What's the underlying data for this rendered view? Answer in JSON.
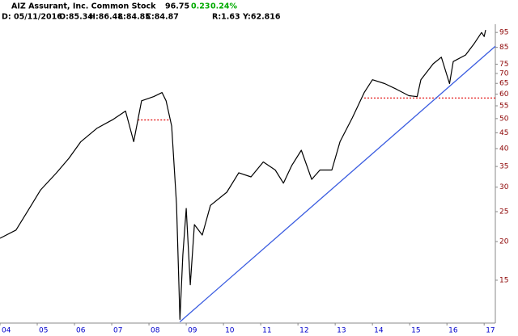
{
  "chart_data": {
    "type": "line",
    "title": "AIZ Assurant, Inc. Common Stock",
    "quote": {
      "last": "96.75",
      "change": "0.23",
      "change_pct": "0.24%"
    },
    "info": [
      "D: 05/11/2016",
      "O:85.34",
      "H:86.48",
      "L:84.85",
      "C:84.87"
    ],
    "readout": [
      "R:1.63",
      "Y:62.816"
    ],
    "log_scale": true,
    "xlim": [
      2004,
      2017.3
    ],
    "ylim": [
      10.9,
      101
    ],
    "xticks": [
      {
        "value": 2004,
        "label": "04"
      },
      {
        "value": 2005,
        "label": "05"
      },
      {
        "value": 2006,
        "label": "06"
      },
      {
        "value": 2007,
        "label": "07"
      },
      {
        "value": 2008,
        "label": "08"
      },
      {
        "value": 2009,
        "label": "09"
      },
      {
        "value": 2010,
        "label": "10"
      },
      {
        "value": 2011,
        "label": "11"
      },
      {
        "value": 2012,
        "label": "12"
      },
      {
        "value": 2013,
        "label": "13"
      },
      {
        "value": 2014,
        "label": "14"
      },
      {
        "value": 2015,
        "label": "15"
      },
      {
        "value": 2016,
        "label": "16"
      },
      {
        "value": 2017,
        "label": "17"
      }
    ],
    "yticks": [
      15,
      20,
      25,
      30,
      35,
      40,
      45,
      50,
      55,
      60,
      65,
      70,
      75,
      85,
      95
    ],
    "series": [
      {
        "name": "AIZ",
        "color": "#000000",
        "x": [
          2004.0,
          2004.43,
          2004.76,
          2005.09,
          2005.52,
          2005.85,
          2006.17,
          2006.61,
          2007.04,
          2007.37,
          2007.59,
          2007.8,
          2008.13,
          2008.35,
          2008.46,
          2008.61,
          2008.74,
          2008.83,
          2008.91,
          2009.0,
          2009.11,
          2009.22,
          2009.43,
          2009.65,
          2010.09,
          2010.41,
          2010.74,
          2011.07,
          2011.39,
          2011.61,
          2011.83,
          2012.09,
          2012.37,
          2012.59,
          2012.91,
          2013.13,
          2013.46,
          2013.78,
          2014.0,
          2014.33,
          2014.65,
          2014.98,
          2015.2,
          2015.3,
          2015.63,
          2015.85,
          2016.07,
          2016.17,
          2016.5,
          2016.72,
          2016.93,
          2017.0,
          2017.04
        ],
        "values": [
          20.5,
          21.8,
          25.3,
          29.4,
          33.4,
          37.2,
          42.1,
          46.6,
          49.7,
          52.9,
          42.1,
          57.1,
          58.9,
          60.7,
          57.1,
          47.3,
          26.4,
          11.2,
          18.1,
          25.6,
          14.5,
          22.7,
          21.0,
          26.2,
          28.9,
          33.4,
          32.4,
          36.2,
          34.1,
          30.9,
          35.2,
          39.5,
          31.8,
          34.1,
          34.1,
          42.1,
          50.3,
          60.7,
          66.8,
          64.9,
          62.2,
          59.3,
          58.9,
          66.8,
          75.2,
          79.0,
          64.9,
          76.5,
          80.3,
          87.0,
          95.0,
          92.2,
          96.75
        ]
      }
    ],
    "trendline": {
      "color": "#3a5ce0",
      "x": [
        2008.83,
        2017.3
      ],
      "values": [
        11.0,
        85.7
      ]
    },
    "levels": [
      {
        "color": "#e00000",
        "x": [
          2007.7,
          2008.57
        ],
        "value": 49.5
      },
      {
        "color": "#e00000",
        "x": [
          2013.78,
          2017.3
        ],
        "value": 58.3
      }
    ]
  }
}
